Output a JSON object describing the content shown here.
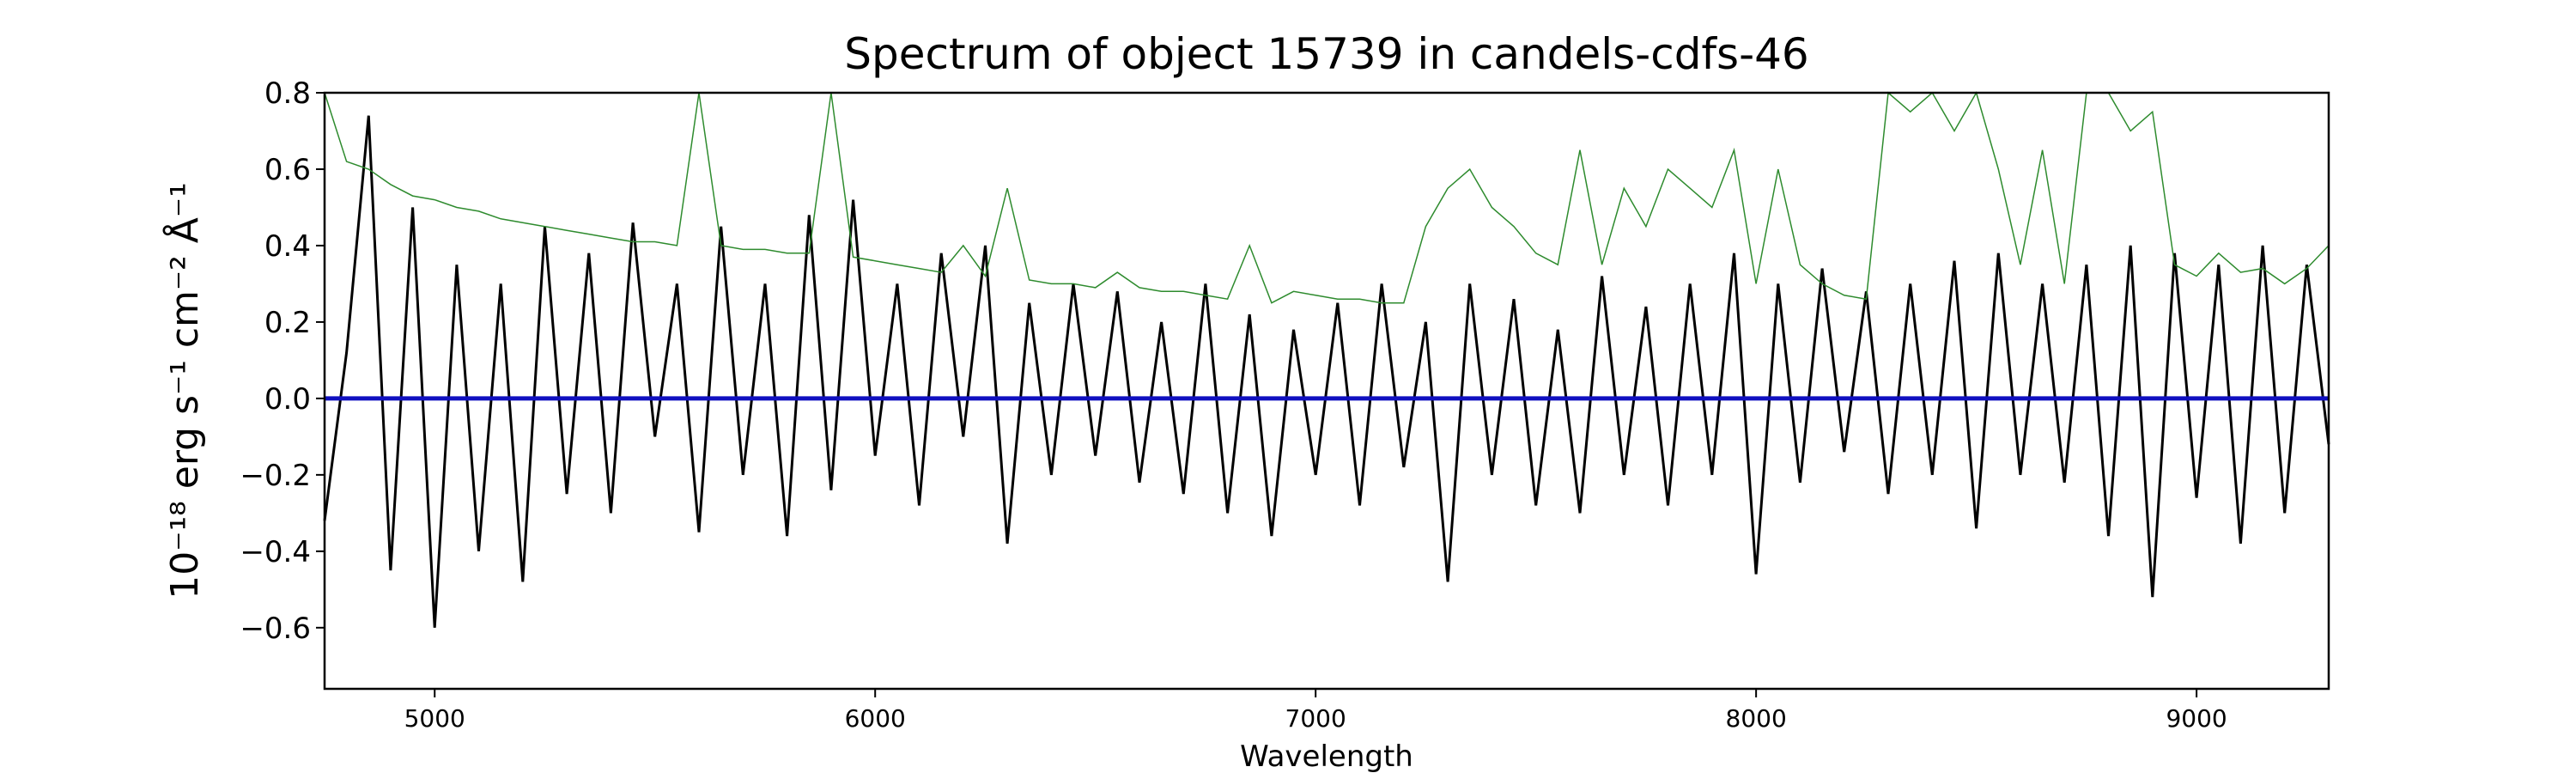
{
  "chart_data": {
    "type": "line",
    "title": "Spectrum of object 15739 in candels-cdfs-46",
    "xlabel": "Wavelength",
    "ylabel": "10⁻¹⁸ erg s⁻¹ cm⁻² Å⁻¹",
    "xlim": [
      4750,
      9300
    ],
    "ylim": [
      -0.76,
      0.8
    ],
    "x_ticks": [
      5000,
      6000,
      7000,
      8000,
      9000
    ],
    "y_ticks": [
      -0.6,
      -0.4,
      -0.2,
      0.0,
      0.2,
      0.4,
      0.6,
      0.8
    ],
    "grid": false,
    "x": [
      4750,
      4800,
      4850,
      4900,
      4950,
      5000,
      5050,
      5100,
      5150,
      5200,
      5250,
      5300,
      5350,
      5400,
      5450,
      5500,
      5550,
      5600,
      5650,
      5700,
      5750,
      5800,
      5850,
      5900,
      5950,
      6000,
      6050,
      6100,
      6150,
      6200,
      6250,
      6300,
      6350,
      6400,
      6450,
      6500,
      6550,
      6600,
      6650,
      6700,
      6750,
      6800,
      6850,
      6900,
      6950,
      7000,
      7050,
      7100,
      7150,
      7200,
      7250,
      7300,
      7350,
      7400,
      7450,
      7500,
      7550,
      7600,
      7650,
      7700,
      7750,
      7800,
      7850,
      7900,
      7950,
      8000,
      8050,
      8100,
      8150,
      8200,
      8250,
      8300,
      8350,
      8400,
      8450,
      8500,
      8550,
      8600,
      8650,
      8700,
      8750,
      8800,
      8850,
      8900,
      8950,
      9000,
      9050,
      9100,
      9150,
      9200,
      9250,
      9300
    ],
    "series": [
      {
        "color": "#000000",
        "values": [
          -0.32,
          0.12,
          0.74,
          -0.45,
          0.5,
          -0.6,
          0.35,
          -0.4,
          0.3,
          -0.48,
          0.45,
          -0.25,
          0.38,
          -0.3,
          0.46,
          -0.1,
          0.3,
          -0.35,
          0.45,
          -0.2,
          0.3,
          -0.36,
          0.48,
          -0.24,
          0.52,
          -0.15,
          0.3,
          -0.28,
          0.38,
          -0.1,
          0.4,
          -0.38,
          0.25,
          -0.2,
          0.3,
          -0.15,
          0.28,
          -0.22,
          0.2,
          -0.25,
          0.3,
          -0.3,
          0.22,
          -0.36,
          0.18,
          -0.2,
          0.25,
          -0.28,
          0.3,
          -0.18,
          0.2,
          -0.48,
          0.3,
          -0.2,
          0.26,
          -0.28,
          0.18,
          -0.3,
          0.32,
          -0.2,
          0.24,
          -0.28,
          0.3,
          -0.2,
          0.38,
          -0.46,
          0.3,
          -0.22,
          0.34,
          -0.14,
          0.28,
          -0.25,
          0.3,
          -0.2,
          0.36,
          -0.34,
          0.38,
          -0.2,
          0.3,
          -0.22,
          0.35,
          -0.36,
          0.4,
          -0.52,
          0.38,
          -0.26,
          0.35,
          -0.38,
          0.4,
          -0.3,
          0.35,
          -0.12
        ]
      },
      {
        "color": "#2e8b2e",
        "values": [
          0.8,
          0.62,
          0.6,
          0.56,
          0.53,
          0.52,
          0.5,
          0.49,
          0.47,
          0.46,
          0.45,
          0.44,
          0.43,
          0.42,
          0.41,
          0.41,
          0.4,
          0.8,
          0.4,
          0.39,
          0.39,
          0.38,
          0.38,
          0.8,
          0.37,
          0.36,
          0.35,
          0.34,
          0.33,
          0.4,
          0.32,
          0.55,
          0.31,
          0.3,
          0.3,
          0.29,
          0.33,
          0.29,
          0.28,
          0.28,
          0.27,
          0.26,
          0.4,
          0.25,
          0.28,
          0.27,
          0.26,
          0.26,
          0.25,
          0.25,
          0.45,
          0.55,
          0.6,
          0.5,
          0.45,
          0.38,
          0.35,
          0.65,
          0.35,
          0.55,
          0.45,
          0.6,
          0.55,
          0.5,
          0.65,
          0.3,
          0.6,
          0.35,
          0.3,
          0.27,
          0.26,
          0.8,
          0.75,
          0.8,
          0.7,
          0.8,
          0.6,
          0.35,
          0.65,
          0.3,
          0.8,
          0.8,
          0.7,
          0.75,
          0.35,
          0.32,
          0.38,
          0.33,
          0.34,
          0.3,
          0.34,
          0.4
        ]
      },
      {
        "color": "#1010c0",
        "values": [
          0,
          0,
          0,
          0,
          0,
          0,
          0,
          0,
          0,
          0,
          0,
          0,
          0,
          0,
          0,
          0,
          0,
          0,
          0,
          0,
          0,
          0,
          0,
          0,
          0,
          0,
          0,
          0,
          0,
          0,
          0,
          0,
          0,
          0,
          0,
          0,
          0,
          0,
          0,
          0,
          0,
          0,
          0,
          0,
          0,
          0,
          0,
          0,
          0,
          0,
          0,
          0,
          0,
          0,
          0,
          0,
          0,
          0,
          0,
          0,
          0,
          0,
          0,
          0,
          0,
          0,
          0,
          0,
          0,
          0,
          0,
          0,
          0,
          0,
          0,
          0,
          0,
          0,
          0,
          0,
          0,
          0,
          0,
          0,
          0,
          0,
          0,
          0,
          0,
          0,
          0,
          0
        ]
      }
    ]
  }
}
